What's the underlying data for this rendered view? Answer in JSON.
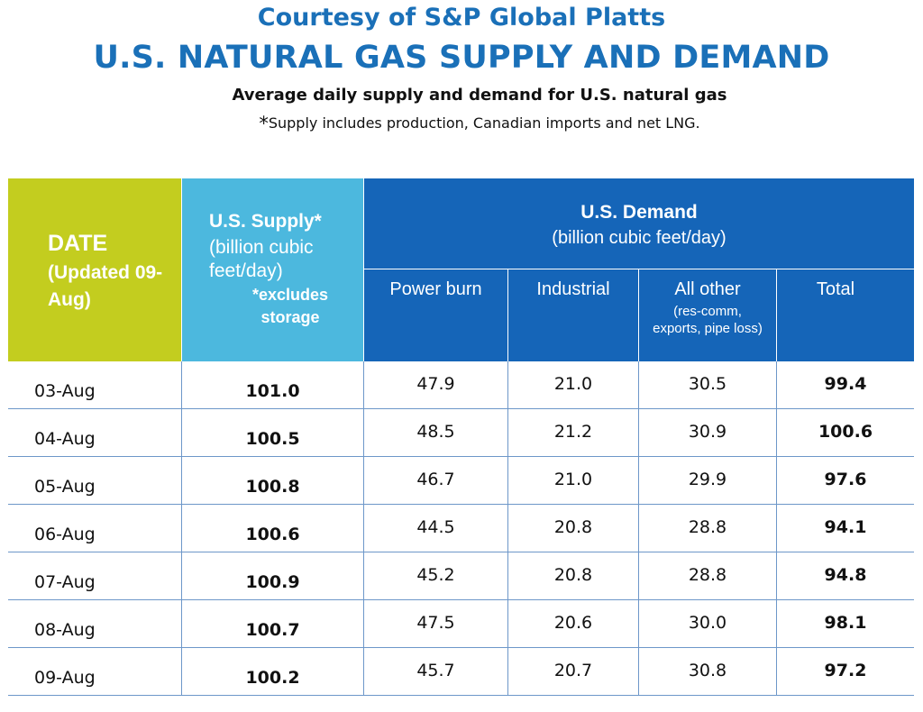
{
  "header": {
    "courtesy": "Courtesy of S&P Global Platts",
    "title": "U.S. NATURAL GAS SUPPLY AND DEMAND",
    "subtitle": "Average daily supply and demand for U.S. natural gas",
    "note_star": "*",
    "note_text": "Supply includes production, Canadian imports and net LNG."
  },
  "table": {
    "date_header": {
      "line1": "DATE",
      "line2": "(Updated 09-Aug)"
    },
    "supply_header": {
      "line1": "U.S. Supply*",
      "line2": "(billion cubic feet/day)",
      "line3": "*excludes storage"
    },
    "demand_header": {
      "line1": "U.S. Demand",
      "line2": "(billion cubic feet/day)"
    },
    "demand_columns": {
      "power": "Power burn",
      "industrial": "Industrial",
      "other": "All other",
      "other_note": "(res-comm, exports, pipe loss)",
      "total": "Total"
    },
    "rows": [
      {
        "date": "03-Aug",
        "supply": "101.0",
        "power": "47.9",
        "industrial": "21.0",
        "other": "30.5",
        "total": "99.4"
      },
      {
        "date": "04-Aug",
        "supply": "100.5",
        "power": "48.5",
        "industrial": "21.2",
        "other": "30.9",
        "total": "100.6"
      },
      {
        "date": "05-Aug",
        "supply": "100.8",
        "power": "46.7",
        "industrial": "21.0",
        "other": "29.9",
        "total": "97.6"
      },
      {
        "date": "06-Aug",
        "supply": "100.6",
        "power": "44.5",
        "industrial": "20.8",
        "other": "28.8",
        "total": "94.1"
      },
      {
        "date": "07-Aug",
        "supply": "100.9",
        "power": "45.2",
        "industrial": "20.8",
        "other": "28.8",
        "total": "94.8"
      },
      {
        "date": "08-Aug",
        "supply": "100.7",
        "power": "47.5",
        "industrial": "20.6",
        "other": "30.0",
        "total": "98.1"
      },
      {
        "date": "09-Aug",
        "supply": "100.2",
        "power": "45.7",
        "industrial": "20.7",
        "other": "30.8",
        "total": "97.2"
      }
    ]
  },
  "colors": {
    "title_blue": "#1a70b8",
    "date_header_green": "#c3cd1f",
    "supply_header_cyan": "#4cb8de",
    "demand_header_blue": "#1565b8",
    "grid_line": "#6d97c9"
  }
}
